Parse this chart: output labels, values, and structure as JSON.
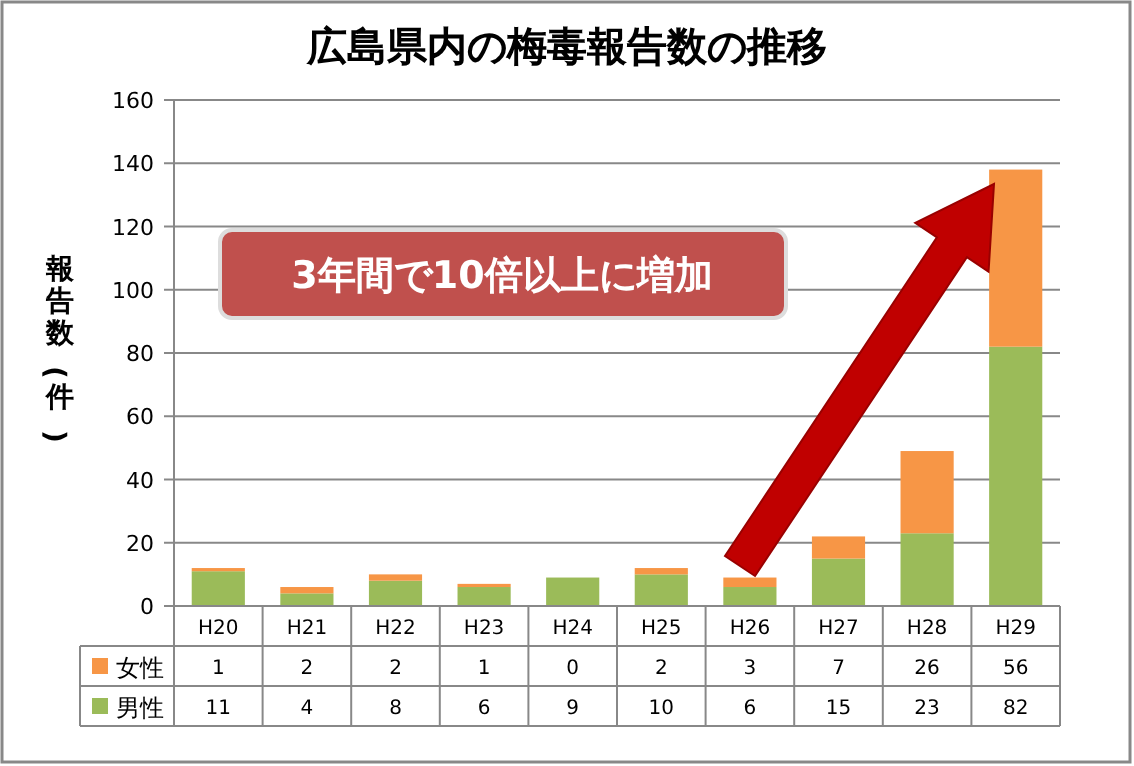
{
  "chart_data": {
    "type": "bar",
    "title": "広島県内の梅毒報告数の推移",
    "ylabel": "報告数(件)",
    "categories": [
      "H20",
      "H21",
      "H22",
      "H23",
      "H24",
      "H25",
      "H26",
      "H27",
      "H28",
      "H29"
    ],
    "stacked": true,
    "series": [
      {
        "name": "男性",
        "color": "#9bbb59",
        "values": [
          11,
          4,
          8,
          6,
          9,
          10,
          6,
          15,
          23,
          82
        ]
      },
      {
        "name": "女性",
        "color": "#f79646",
        "values": [
          1,
          2,
          2,
          1,
          0,
          2,
          3,
          7,
          26,
          56
        ]
      }
    ],
    "ylim": [
      0,
      160
    ],
    "yticks": [
      0,
      20,
      40,
      60,
      80,
      100,
      120,
      140,
      160
    ],
    "grid": "y",
    "legend": "bottom",
    "data_labels": true,
    "annotations": [
      "3年間で10倍以上に増加"
    ]
  }
}
